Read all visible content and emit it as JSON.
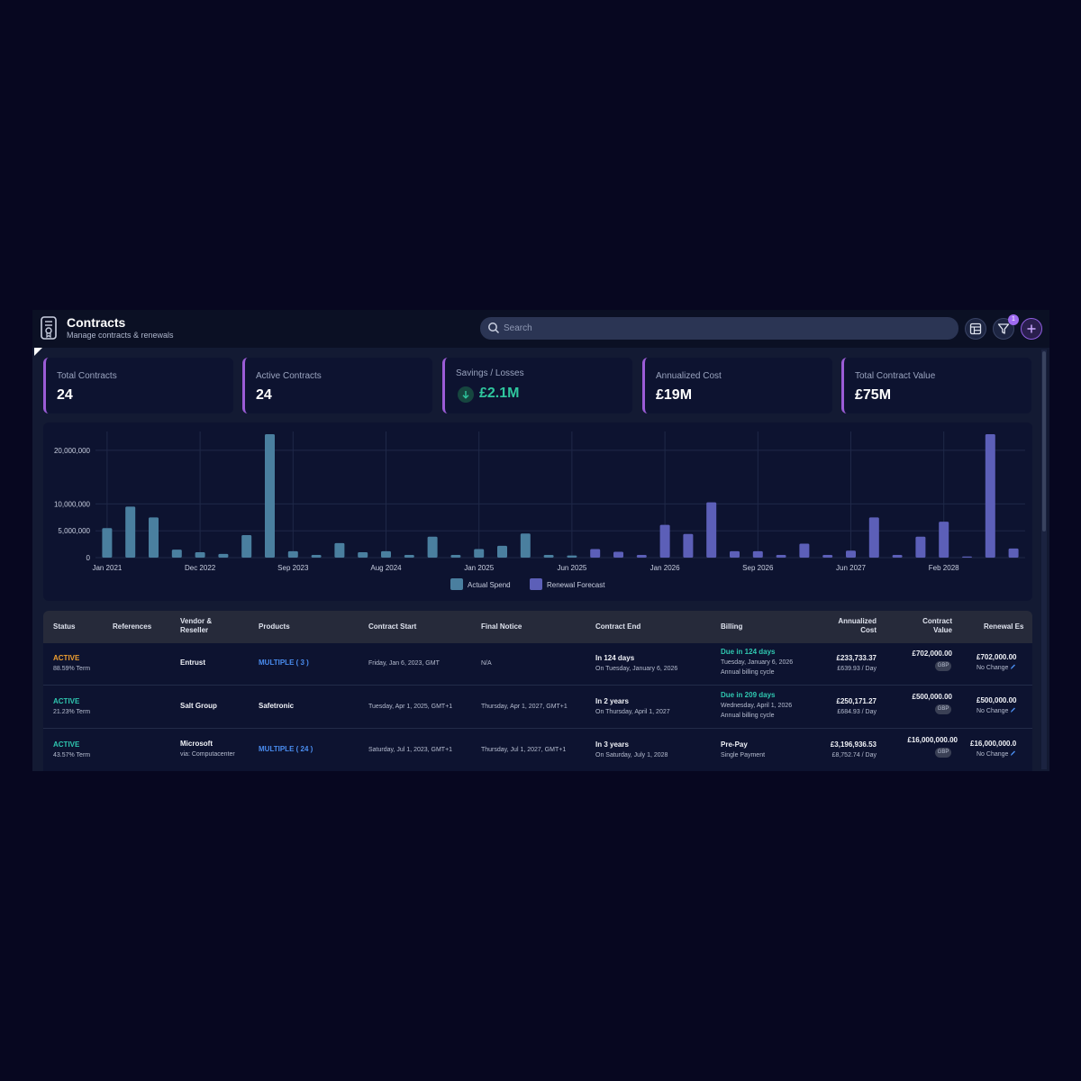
{
  "header": {
    "title": "Contracts",
    "subtitle": "Manage contracts & renewals",
    "search_placeholder": "Search",
    "filter_badge": "1"
  },
  "kpis": [
    {
      "label": "Total Contracts",
      "value": "24"
    },
    {
      "label": "Active Contracts",
      "value": "24"
    },
    {
      "label": "Savings / Losses",
      "value": "£2.1M",
      "trend": "down"
    },
    {
      "label": "Annualized Cost",
      "value": "£19M"
    },
    {
      "label": "Total Contract Value",
      "value": "£75M"
    }
  ],
  "colors": {
    "actual": "#4a7f9f",
    "forecast": "#5c5fb8",
    "accent": "#9b5cd6",
    "positive": "#2fc79e"
  },
  "chart_data": {
    "type": "bar",
    "xtick_labels": [
      "Jan 2021",
      "Dec 2022",
      "Sep 2023",
      "Aug 2024",
      "Jan 2025",
      "Jun 2025",
      "Jan 2026",
      "Sep 2026",
      "Jun 2027",
      "Feb 2028"
    ],
    "yticks": [
      0,
      5000000,
      10000000,
      20000000
    ],
    "ytick_labels": [
      "0",
      "5,000,000",
      "10,000,000",
      "20,000,000"
    ],
    "ylim": [
      0,
      23500000
    ],
    "grid": true,
    "legend_position": "bottom-center",
    "series": [
      {
        "name": "Actual Spend",
        "values": [
          5500000,
          9500000,
          7500000,
          1500000,
          1000000,
          700000,
          4200000,
          23000000,
          1200000,
          500000,
          2700000,
          1000000,
          1200000,
          500000,
          3900000,
          500000,
          1600000,
          2200000,
          4500000,
          500000,
          400000
        ]
      },
      {
        "name": "Renewal Forecast",
        "values": [
          1600000,
          1100000,
          500000,
          6100000,
          4400000,
          10300000,
          1200000,
          1200000,
          500000,
          2600000,
          500000,
          1300000,
          7500000,
          500000,
          3900000,
          6700000,
          200000,
          23000000,
          1700000
        ]
      }
    ]
  },
  "table": {
    "columns": [
      "Status",
      "References",
      "Vendor & Reseller",
      "Products",
      "Contract Start",
      "Final Notice",
      "Contract End",
      "Billing",
      "Annualized Cost",
      "Contract Value",
      "Renewal Es"
    ],
    "column_lines": {
      "vendor": [
        "Vendor &",
        "Reseller"
      ],
      "annualized": [
        "Annualized",
        "Cost"
      ],
      "contract_value": [
        "Contract",
        "Value"
      ]
    },
    "rows": [
      {
        "status": "ACTIVE",
        "term": "88.59% Term",
        "vendor": "Entrust",
        "reseller": "",
        "products": "MULTIPLE ( 3 )",
        "start": "Friday, Jan 6, 2023, GMT",
        "final_notice": "N/A",
        "end_main": "In 124 days",
        "end_sub": "On Tuesday, January 6, 2026",
        "billing_main": "Due in 124 days",
        "billing_sub1": "Tuesday, January 6, 2026",
        "billing_sub2": "Annual billing cycle",
        "annual": "£233,733.37",
        "per_day": "£639.93 / Day",
        "value": "£702,000.00",
        "currency": "GBP",
        "renewal": "£702,000.00",
        "renewal_sub": "No Change"
      },
      {
        "status": "ACTIVE",
        "term": "21.23% Term",
        "vendor": "Salt Group",
        "reseller": "",
        "products": "Safetronic",
        "start": "Tuesday, Apr 1, 2025, GMT+1",
        "final_notice": "Thursday, Apr 1, 2027, GMT+1",
        "end_main": "In 2 years",
        "end_sub": "On Thursday, April 1, 2027",
        "billing_main": "Due in 209 days",
        "billing_sub1": "Wednesday, April 1, 2026",
        "billing_sub2": "Annual billing cycle",
        "annual": "£250,171.27",
        "per_day": "£684.93 / Day",
        "value": "£500,000.00",
        "currency": "GBP",
        "renewal": "£500,000.00",
        "renewal_sub": "No Change"
      },
      {
        "status": "ACTIVE",
        "term": "43.57% Term",
        "vendor": "Microsoft",
        "reseller": "via: Computacenter",
        "products": "MULTIPLE ( 24 )",
        "start": "Saturday, Jul 1, 2023, GMT+1",
        "final_notice": "Thursday, Jul 1, 2027, GMT+1",
        "end_main": "In 3 years",
        "end_sub": "On Saturday, July 1, 2028",
        "billing_main": "Pre-Pay",
        "billing_sub1": "Single Payment",
        "billing_sub2": "",
        "annual": "£3,196,936.53",
        "per_day": "£8,752.74 / Day",
        "value": "£16,000,000.00",
        "currency": "GBP",
        "renewal": "£16,000,000.0",
        "renewal_sub": "No Change"
      }
    ]
  }
}
